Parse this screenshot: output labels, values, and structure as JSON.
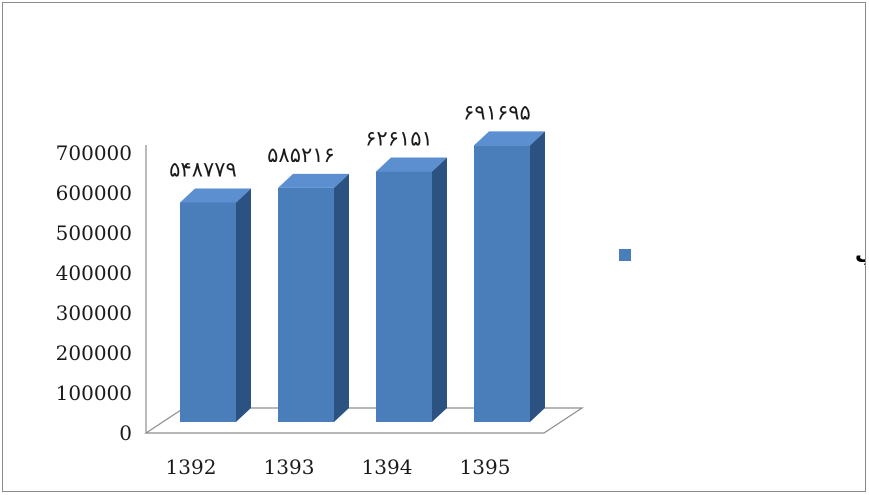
{
  "chart_data": {
    "type": "bar",
    "title": "",
    "xlabel": "",
    "ylabel": "",
    "categories": [
      "1392",
      "1393",
      "1394",
      "1395"
    ],
    "series": [
      {
        "name": "تعداد انشعاب فاضلاب",
        "values": [
          548779,
          585216,
          626151,
          691695
        ],
        "value_labels": [
          "۵۴۸۷۷۹",
          "۵۸۵۲۱۶",
          "۶۲۶۱۵۱",
          "۶۹۱۶۹۵"
        ],
        "color": "#4a7ebb",
        "side_color": "#2c5282",
        "top_color": "#5b8fd0"
      }
    ],
    "y_ticks": [
      "0",
      "100000",
      "200000",
      "300000",
      "400000",
      "500000",
      "600000",
      "700000"
    ],
    "ylim": [
      0,
      700000
    ],
    "grid": false,
    "legend_position": "right",
    "style": "3d-column"
  }
}
